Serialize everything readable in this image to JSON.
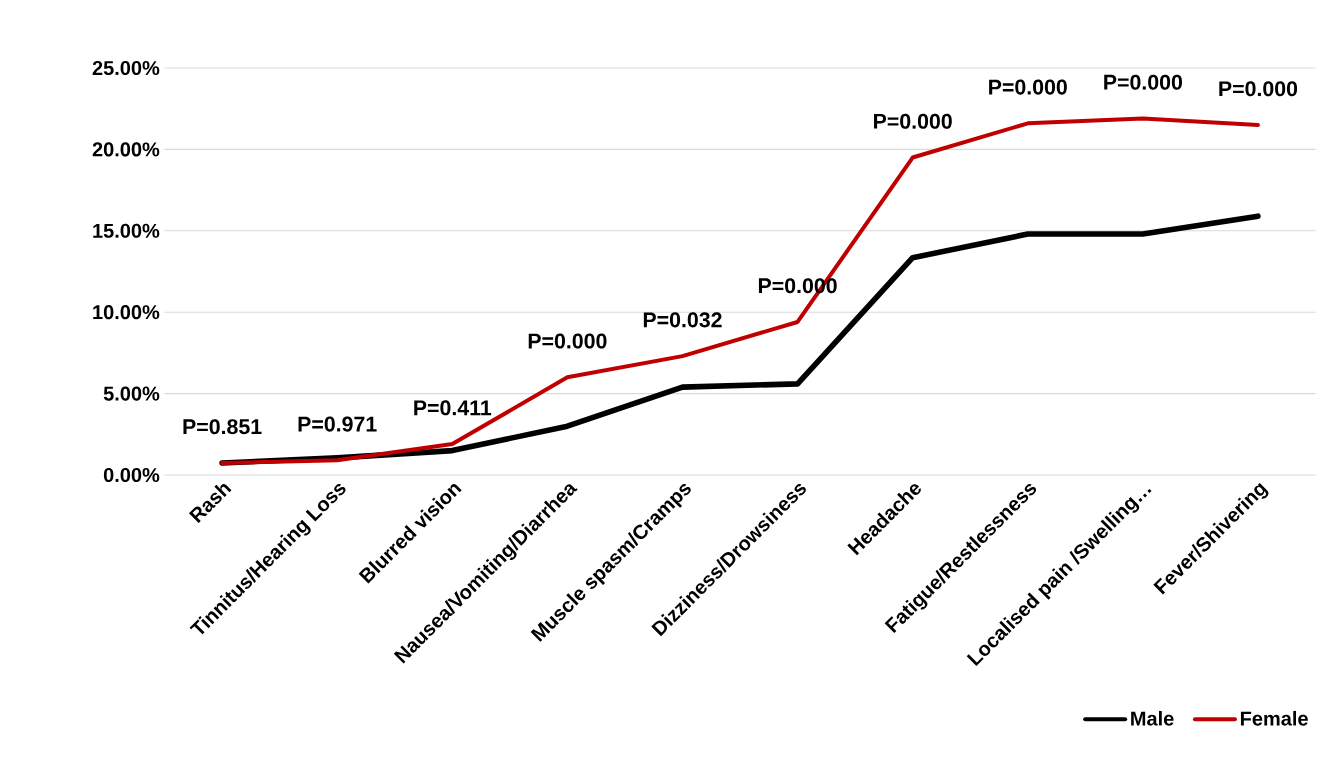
{
  "chart_data": {
    "type": "line",
    "categories": [
      "Rash",
      "Tinnitus/Hearing Loss",
      "Blurred vision",
      "Nausea/Vomiting/Diarrhea",
      "Muscle spasm/Cramps",
      "Dizziness/Drowsiness",
      "Headache",
      "Fatigue/Restlessness",
      "Localised pain /Swelling…",
      "Fever/Shivering"
    ],
    "series": [
      {
        "name": "Male",
        "color": "#000000",
        "values": [
          0.74,
          1.05,
          1.5,
          3.0,
          5.4,
          5.6,
          13.35,
          14.8,
          14.8,
          15.9
        ]
      },
      {
        "name": "Female",
        "color": "#c00000",
        "values": [
          0.74,
          0.9,
          1.9,
          6.0,
          7.3,
          9.4,
          19.5,
          21.6,
          21.9,
          21.5
        ]
      }
    ],
    "ylim": [
      0,
      25
    ],
    "yticks": [
      {
        "value": 0,
        "label": "0.00%"
      },
      {
        "value": 5,
        "label": "5.00%"
      },
      {
        "value": 10,
        "label": "10.00%"
      },
      {
        "value": 15,
        "label": "15.00%"
      },
      {
        "value": 20,
        "label": "20.00%"
      },
      {
        "value": 25,
        "label": "25.00%"
      }
    ],
    "grid": "y",
    "legend": "bottom right",
    "marker": "none",
    "line_style": "solid",
    "annotations": [
      {
        "text": "P=0.851",
        "x": "Rash",
        "y": 0.74
      },
      {
        "text": "P=0.971",
        "x": "Tinnitus/Hearing Loss",
        "y": 0.9
      },
      {
        "text": "P=0.411",
        "x": "Blurred vision",
        "y": 1.9
      },
      {
        "text": "P=0.000",
        "x": "Nausea/Vomiting/Diarrhea",
        "y": 6.0
      },
      {
        "text": "P=0.032",
        "x": "Muscle spasm/Cramps",
        "y": 7.3
      },
      {
        "text": "P=0.000",
        "x": "Dizziness/Drowsiness",
        "y": 9.4
      },
      {
        "text": "P=0.000",
        "x": "Headache",
        "y": 19.5
      },
      {
        "text": "P=0.000",
        "x": "Fatigue/Restlessness",
        "y": 21.6
      },
      {
        "text": "P=0.000",
        "x": "Localised pain /Swelling…",
        "y": 21.9
      },
      {
        "text": "P=0.000",
        "x": "Fever/Shivering",
        "y": 21.5
      }
    ]
  }
}
